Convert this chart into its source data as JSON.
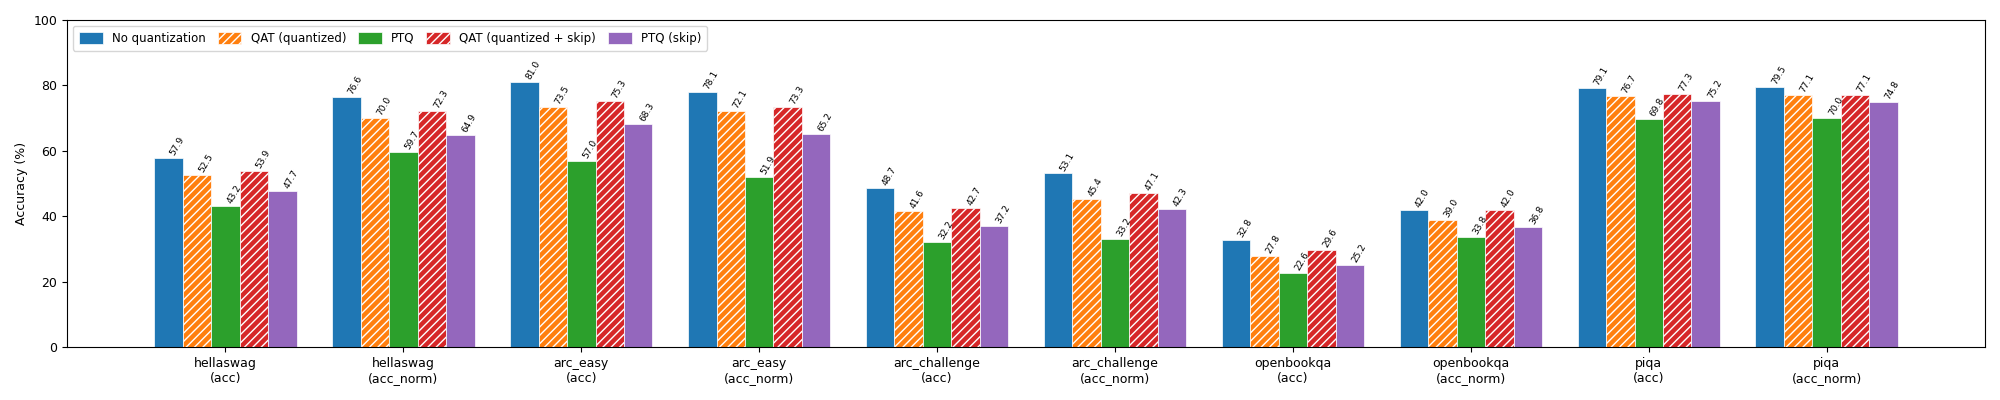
{
  "categories": [
    "hellaswag\n(acc)",
    "hellaswag\n(acc_norm)",
    "arc_easy\n(acc)",
    "arc_easy\n(acc_norm)",
    "arc_challenge\n(acc)",
    "arc_challenge\n(acc_norm)",
    "openbookqa\n(acc)",
    "openbookqa\n(acc_norm)",
    "piqa\n(acc)",
    "piqa\n(acc_norm)"
  ],
  "series": {
    "No quantization": [
      57.9,
      76.6,
      81.0,
      78.1,
      48.7,
      53.1,
      32.8,
      42.0,
      79.1,
      79.5
    ],
    "QAT (quantized)": [
      52.5,
      70.0,
      73.5,
      72.1,
      41.6,
      45.4,
      27.8,
      39.0,
      76.7,
      77.1
    ],
    "PTQ": [
      43.2,
      59.7,
      57.0,
      51.9,
      32.2,
      33.2,
      22.6,
      33.8,
      69.8,
      70.0
    ],
    "QAT (quantized + skip)": [
      53.9,
      72.3,
      75.3,
      73.3,
      42.7,
      47.1,
      29.6,
      42.0,
      77.3,
      77.1
    ],
    "PTQ (skip)": [
      47.7,
      64.9,
      68.3,
      65.2,
      37.2,
      42.3,
      25.2,
      36.8,
      75.2,
      74.8
    ]
  },
  "colors": {
    "No quantization": "#1f77b4",
    "QAT (quantized)": "#ff7f0e",
    "PTQ": "#2ca02c",
    "QAT (quantized + skip)": "#d62728",
    "PTQ (skip)": "#9467bd"
  },
  "hatches": {
    "No quantization": "",
    "QAT (quantized)": "////",
    "PTQ": "",
    "QAT (quantized + skip)": "////",
    "PTQ (skip)": ""
  },
  "ylabel": "Accuracy (%)",
  "ylim": [
    0,
    100
  ],
  "yticks": [
    0,
    20,
    40,
    60,
    80,
    100
  ],
  "bar_width": 0.16,
  "fontsize_label": 6.5,
  "fontsize_axis": 9,
  "fontsize_legend": 8.5,
  "label_rotation": 60
}
